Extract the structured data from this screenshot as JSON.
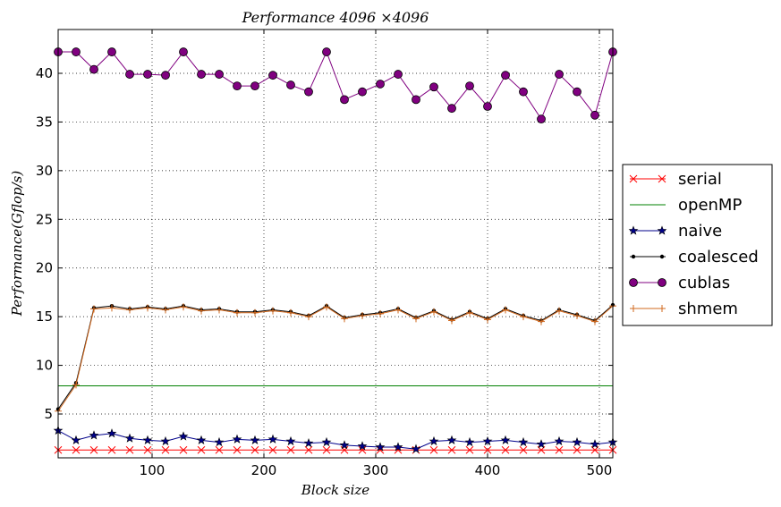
{
  "chart_data": {
    "type": "line",
    "title": "Performance 4096 ×4096",
    "xlabel": "Block size",
    "ylabel": "Performance(Gflop/s)",
    "xlim": [
      16,
      512
    ],
    "ylim": [
      0.5,
      44.5
    ],
    "xticks": [
      100,
      200,
      300,
      400,
      500
    ],
    "yticks": [
      5,
      10,
      15,
      20,
      25,
      30,
      35,
      40
    ],
    "grid": true,
    "legend_position": "right",
    "x": [
      16,
      32,
      48,
      64,
      80,
      96,
      112,
      128,
      144,
      160,
      176,
      192,
      208,
      224,
      240,
      256,
      272,
      288,
      304,
      320,
      336,
      352,
      368,
      384,
      400,
      416,
      432,
      448,
      464,
      480,
      496,
      512
    ],
    "series": [
      {
        "name": "serial",
        "color": "#ff0000",
        "marker": "x",
        "values": [
          1.3,
          1.3,
          1.3,
          1.3,
          1.3,
          1.3,
          1.3,
          1.3,
          1.3,
          1.3,
          1.3,
          1.3,
          1.3,
          1.3,
          1.3,
          1.3,
          1.3,
          1.3,
          1.3,
          1.3,
          1.3,
          1.3,
          1.3,
          1.3,
          1.3,
          1.3,
          1.3,
          1.3,
          1.3,
          1.3,
          1.3,
          1.3
        ]
      },
      {
        "name": "openMP",
        "color": "#008000",
        "marker": "none",
        "values": [
          7.9,
          7.9,
          7.9,
          7.9,
          7.9,
          7.9,
          7.9,
          7.9,
          7.9,
          7.9,
          7.9,
          7.9,
          7.9,
          7.9,
          7.9,
          7.9,
          7.9,
          7.9,
          7.9,
          7.9,
          7.9,
          7.9,
          7.9,
          7.9,
          7.9,
          7.9,
          7.9,
          7.9,
          7.9,
          7.9,
          7.9,
          7.9
        ]
      },
      {
        "name": "naive",
        "color": "#00008b",
        "marker": "star",
        "values": [
          3.3,
          2.3,
          2.8,
          3.0,
          2.5,
          2.3,
          2.2,
          2.7,
          2.3,
          2.1,
          2.4,
          2.3,
          2.4,
          2.2,
          2.0,
          2.1,
          1.8,
          1.7,
          1.6,
          1.6,
          1.4,
          2.2,
          2.3,
          2.1,
          2.2,
          2.3,
          2.1,
          1.9,
          2.2,
          2.1,
          1.9,
          2.1
        ]
      },
      {
        "name": "coalesced",
        "color": "#000000",
        "marker": "dot",
        "values": [
          5.5,
          8.2,
          15.9,
          16.1,
          15.8,
          16.0,
          15.8,
          16.1,
          15.7,
          15.8,
          15.5,
          15.5,
          15.7,
          15.5,
          15.1,
          16.1,
          14.9,
          15.2,
          15.4,
          15.8,
          14.9,
          15.6,
          14.7,
          15.5,
          14.8,
          15.8,
          15.1,
          14.6,
          15.7,
          15.2,
          14.6,
          16.2
        ]
      },
      {
        "name": "cublas",
        "color": "#800080",
        "marker": "circle",
        "values": [
          42.2,
          42.2,
          40.4,
          42.2,
          39.9,
          39.9,
          39.8,
          42.2,
          39.9,
          39.9,
          38.7,
          38.7,
          39.8,
          38.8,
          38.1,
          42.2,
          37.3,
          38.1,
          38.9,
          39.9,
          37.3,
          38.6,
          36.4,
          38.7,
          36.6,
          39.8,
          38.1,
          35.3,
          39.9,
          38.1,
          35.7,
          42.2
        ]
      },
      {
        "name": "shmem",
        "color": "#d2691e",
        "marker": "plus",
        "values": [
          5.3,
          8.0,
          15.8,
          15.9,
          15.7,
          15.9,
          15.7,
          16.0,
          15.6,
          15.7,
          15.4,
          15.4,
          15.6,
          15.4,
          15.0,
          16.0,
          14.8,
          15.1,
          15.3,
          15.7,
          14.8,
          15.5,
          14.6,
          15.4,
          14.7,
          15.7,
          15.0,
          14.5,
          15.6,
          15.1,
          14.5,
          16.1
        ]
      }
    ]
  }
}
